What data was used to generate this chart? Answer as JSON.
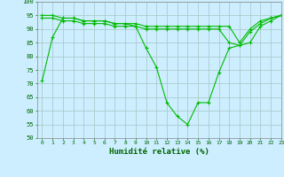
{
  "title": "",
  "xlabel": "Humidité relative (%)",
  "ylabel": "",
  "background_color": "#cceeff",
  "grid_color": "#aacccc",
  "line_color": "#00bb00",
  "marker": "+",
  "xlim": [
    -0.5,
    23
  ],
  "ylim": [
    50,
    100
  ],
  "yticks": [
    50,
    55,
    60,
    65,
    70,
    75,
    80,
    85,
    90,
    95,
    100
  ],
  "xticks": [
    0,
    1,
    2,
    3,
    4,
    5,
    6,
    7,
    8,
    9,
    10,
    11,
    12,
    13,
    14,
    15,
    16,
    17,
    18,
    19,
    20,
    21,
    22,
    23
  ],
  "series": [
    [
      71,
      87,
      94,
      94,
      93,
      93,
      93,
      92,
      92,
      91,
      83,
      76,
      63,
      58,
      55,
      63,
      63,
      74,
      83,
      84,
      89,
      92,
      94,
      95
    ],
    [
      95,
      95,
      94,
      94,
      93,
      93,
      93,
      92,
      92,
      92,
      91,
      91,
      91,
      91,
      91,
      91,
      91,
      91,
      91,
      85,
      90,
      93,
      94,
      95
    ],
    [
      94,
      94,
      93,
      93,
      92,
      92,
      92,
      91,
      91,
      91,
      90,
      90,
      90,
      90,
      90,
      90,
      90,
      90,
      85,
      84,
      85,
      91,
      93,
      95
    ]
  ]
}
